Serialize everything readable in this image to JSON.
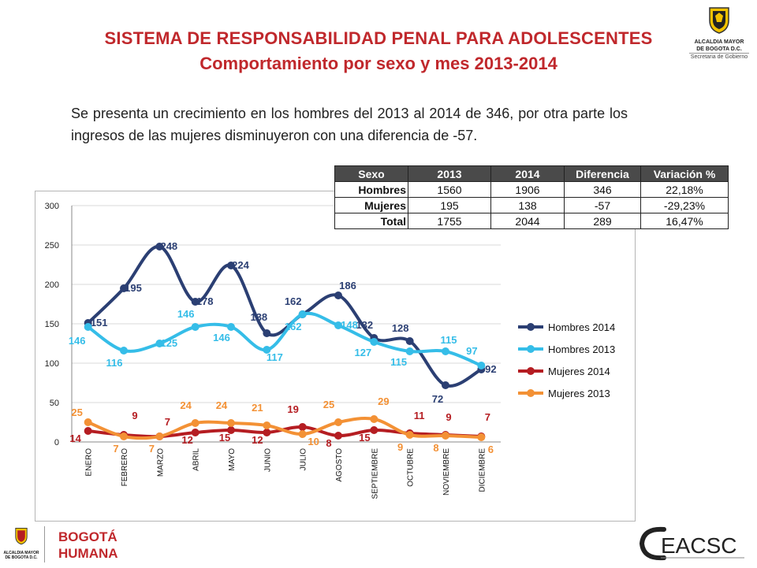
{
  "header": {
    "title": "SISTEMA DE RESPONSABILIDAD PENAL PARA ADOLESCENTES",
    "subtitle": "Comportamiento por sexo y mes 2013-2014",
    "intro": "Se presenta un crecimiento en los hombres del 2013 al 2014 de 346, por otra parte los ingresos de las mujeres disminuyeron con una diferencia de -57."
  },
  "logo_top_right": {
    "line1": "ALCALDIA MAYOR",
    "line2": "DE BOGOTA D.C.",
    "line3": "Secretaria de Gobierno"
  },
  "logo_bottom_left": {
    "line1": "ALCALDIA MAYOR",
    "line2": "DE BOGOTA D.C."
  },
  "logo_bogota": {
    "line1": "BOGOTÁ",
    "line2": "HUMANA"
  },
  "logo_ceacsc": {
    "text": "CEACSC"
  },
  "stats_table": {
    "headers": [
      "Sexo",
      "2013",
      "2014",
      "Diferencia",
      "Variación %"
    ],
    "rows": [
      [
        "Hombres",
        "1560",
        "1906",
        "346",
        "22,18%"
      ],
      [
        "Mujeres",
        "195",
        "138",
        "-57",
        "-29,23%"
      ],
      [
        "Total",
        "1755",
        "2044",
        "289",
        "16,47%"
      ]
    ]
  },
  "chart_data": {
    "type": "line",
    "categories": [
      "ENERO",
      "FEBRERO",
      "MARZO",
      "ABRIL",
      "MAYO",
      "JUNIO",
      "JULIO",
      "AGOSTO",
      "SEPTIEMBRE",
      "OCTUBRE",
      "NOVIEMBRE",
      "DICIEMBRE"
    ],
    "ylim": [
      0,
      300
    ],
    "yticks": [
      0,
      50,
      100,
      150,
      200,
      250,
      300
    ],
    "grid": true,
    "legend_position": "right",
    "series": [
      {
        "name": "Hombres 2014",
        "color": "#2b3f73",
        "values": [
          151,
          195,
          248,
          178,
          224,
          138,
          162,
          186,
          132,
          128,
          72,
          92
        ]
      },
      {
        "name": "Hombres 2013",
        "color": "#35bde8",
        "values": [
          146,
          116,
          125,
          146,
          146,
          117,
          162,
          148,
          127,
          115,
          115,
          97
        ]
      },
      {
        "name": "Mujeres 2014",
        "color": "#b51d22",
        "values": [
          14,
          9,
          7,
          12,
          15,
          12,
          19,
          8,
          15,
          11,
          9,
          7
        ]
      },
      {
        "name": "Mujeres 2013",
        "color": "#f39135",
        "values": [
          25,
          7,
          7,
          24,
          24,
          21,
          10,
          25,
          29,
          9,
          8,
          6
        ]
      }
    ]
  }
}
